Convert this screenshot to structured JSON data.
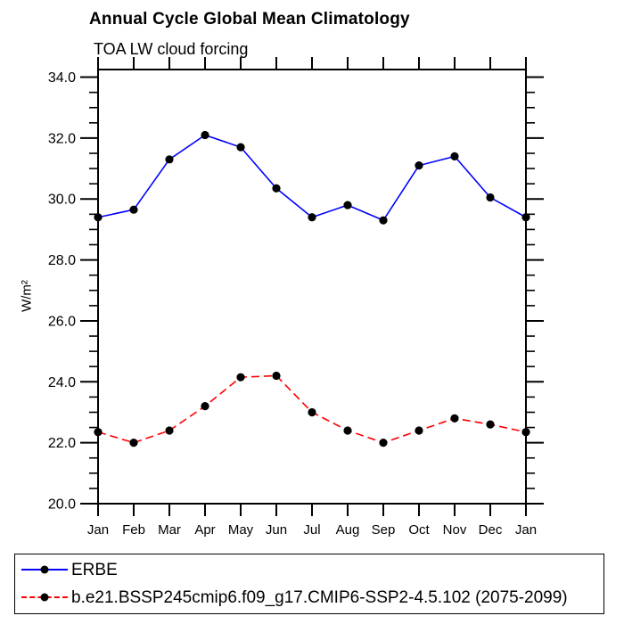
{
  "chart_data": {
    "type": "line",
    "title": "Annual Cycle Global Mean Climatology",
    "subtitle": "TOA LW cloud forcing",
    "ylabel": "W/m²",
    "xlabel": "",
    "categories": [
      "Jan",
      "Feb",
      "Mar",
      "Apr",
      "May",
      "Jun",
      "Jul",
      "Aug",
      "Sep",
      "Oct",
      "Nov",
      "Dec",
      "Jan"
    ],
    "ylim": [
      20.0,
      34.25
    ],
    "yticks": [
      20,
      22,
      24,
      26,
      28,
      30,
      32,
      34
    ],
    "ytick_labels": [
      "20.0",
      "22.0",
      "24.0",
      "26.0",
      "28.0",
      "30.0",
      "32.0",
      "34.0"
    ],
    "minor_tick_step": 0.5,
    "grid": false,
    "legend_position": "bottom",
    "axis_color": "#000000",
    "marker_color": "#000000",
    "series": [
      {
        "name": "ERBE",
        "color": "#0000ff",
        "style": "solid",
        "marker": "circle",
        "values": [
          29.4,
          29.65,
          31.3,
          32.1,
          31.7,
          30.35,
          29.4,
          29.8,
          29.3,
          31.1,
          31.4,
          30.05,
          29.4
        ]
      },
      {
        "name": "b.e21.BSSP245cmip6.f09_g17.CMIP6-SSP2-4.5.102 (2075-2099)",
        "color": "#ff0000",
        "style": "dashed",
        "marker": "circle",
        "values": [
          22.35,
          22.0,
          22.4,
          23.2,
          24.15,
          24.2,
          23.0,
          22.4,
          22.0,
          22.4,
          22.8,
          22.6,
          22.35
        ]
      }
    ]
  }
}
